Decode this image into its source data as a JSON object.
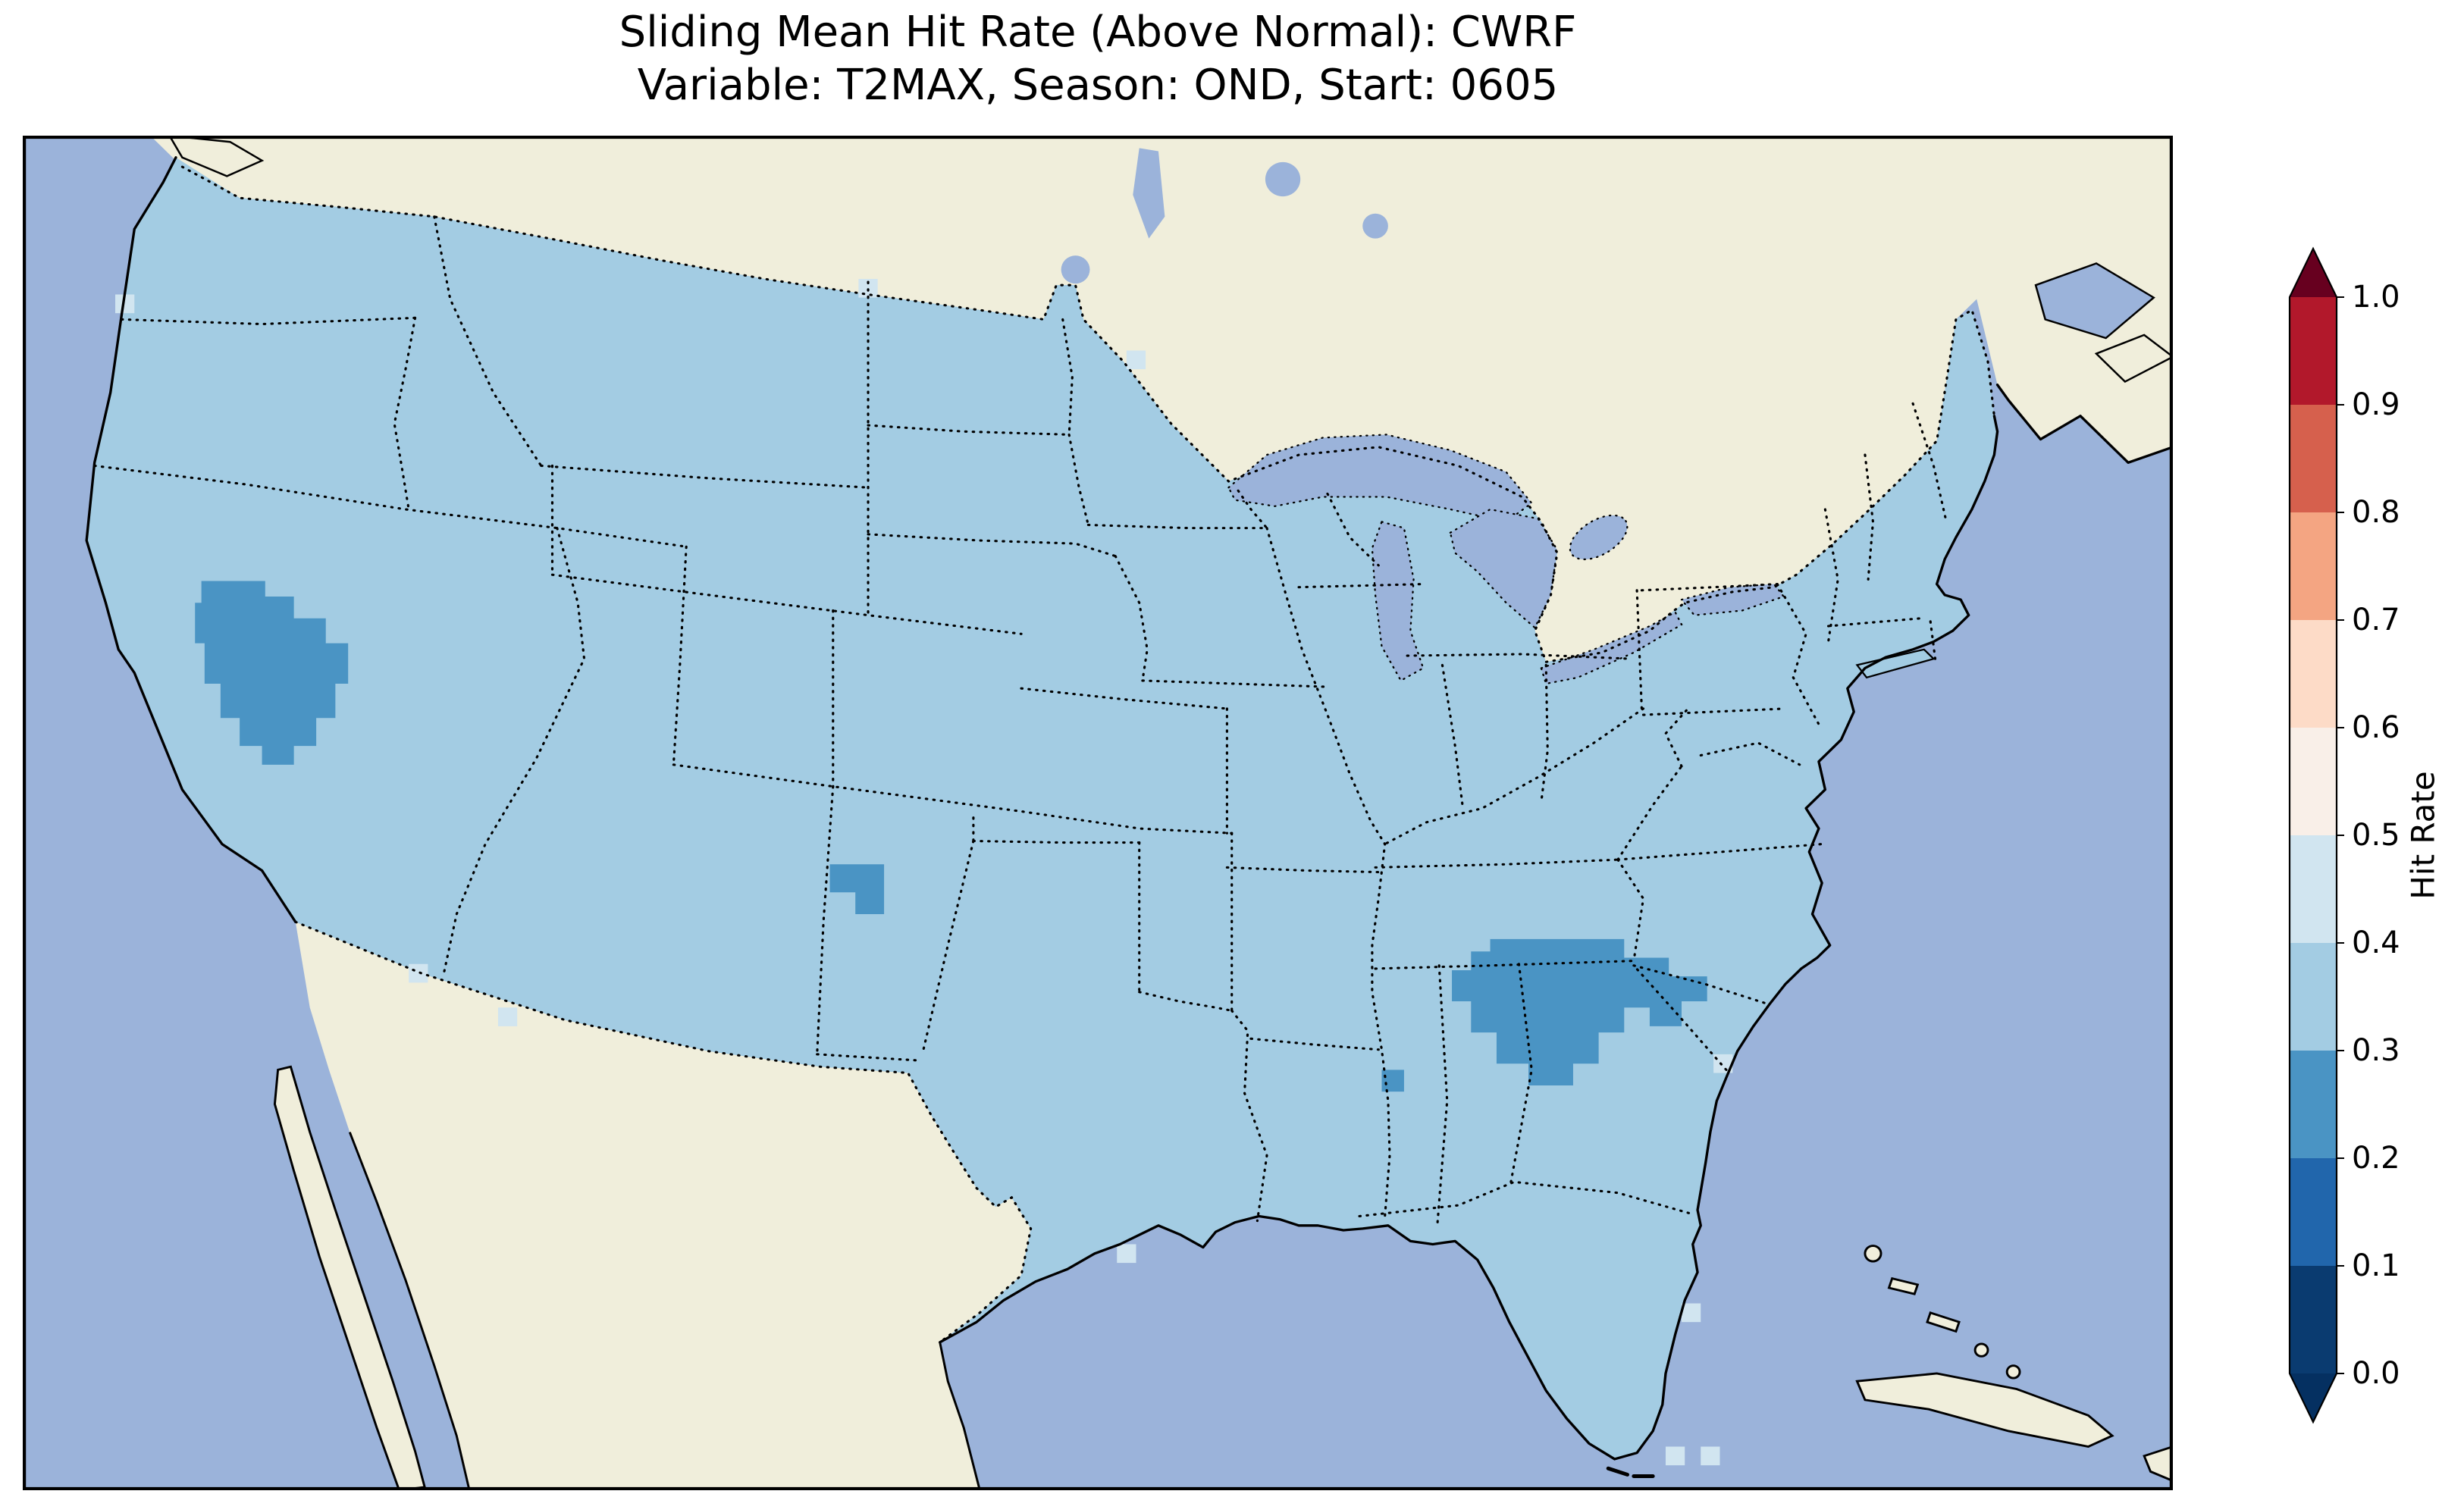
{
  "figure": {
    "title_line1": "Sliding Mean Hit Rate (Above Normal): CWRF",
    "title_line2": "Variable: T2MAX, Season: OND, Start: 0605"
  },
  "colorbar": {
    "label": "Hit Rate",
    "tick_labels_top_to_bottom": [
      "1.0",
      "0.9",
      "0.8",
      "0.7",
      "0.6",
      "0.5",
      "0.4",
      "0.3",
      "0.2",
      "0.1",
      "0.0"
    ],
    "over_arrow_color": "#67001f",
    "under_arrow_color": "#053061",
    "bin_colors_top_to_bottom": [
      "#b2182b",
      "#d6604d",
      "#f4a582",
      "#fddbc7",
      "#f9efe8",
      "#d1e5f0",
      "#a3cce3",
      "#4a94c4",
      "#2166ac",
      "#0a3b70"
    ]
  },
  "map_colors": {
    "ocean": "#9bb3da",
    "land_non_us": "#f0eedb",
    "conus_fill": "#a3cce3",
    "low_patch": "#4a94c4",
    "pale_cell": "#d1e5f0",
    "boundary": "#000000"
  },
  "chart_data": {
    "type": "heatmap",
    "title": "Sliding Mean Hit Rate (Above Normal): CWRF",
    "subtitle": "Variable: T2MAX, Season: OND, Start: 0605",
    "model": "CWRF",
    "variable": "T2MAX",
    "season": "OND",
    "start": "0605",
    "metric": "Sliding Mean Hit Rate (Above Normal)",
    "colorbar_label": "Hit Rate",
    "value_range": [
      0.0,
      1.0
    ],
    "tick_values": [
      0.0,
      0.1,
      0.2,
      0.3,
      0.4,
      0.5,
      0.6,
      0.7,
      0.8,
      0.9,
      1.0
    ],
    "colormap": "discrete blue-to-red, 10 bins with pointed extensions at both ends",
    "legend_position": "right",
    "grid": false,
    "regions": [
      {
        "region": "Most of CONUS",
        "hit_rate_bin": "0.3-0.4"
      },
      {
        "region": "Western Nevada patch",
        "hit_rate_bin": "0.2-0.3"
      },
      {
        "region": "Southwest Oklahoma / Texas panhandle small patch",
        "hit_rate_bin": "0.2-0.3"
      },
      {
        "region": "Central Georgia into western South Carolina patch",
        "hit_rate_bin": "0.2-0.3"
      },
      {
        "region": "Small cell near Mississippi-Alabama border",
        "hit_rate_bin": "0.2-0.3"
      },
      {
        "region": "Scattered coastal and border cells",
        "hit_rate_bin": "0.4-0.5"
      },
      {
        "region": "Oceans, Canada, Mexico, Caribbean",
        "hit_rate_bin": "no data"
      }
    ]
  }
}
